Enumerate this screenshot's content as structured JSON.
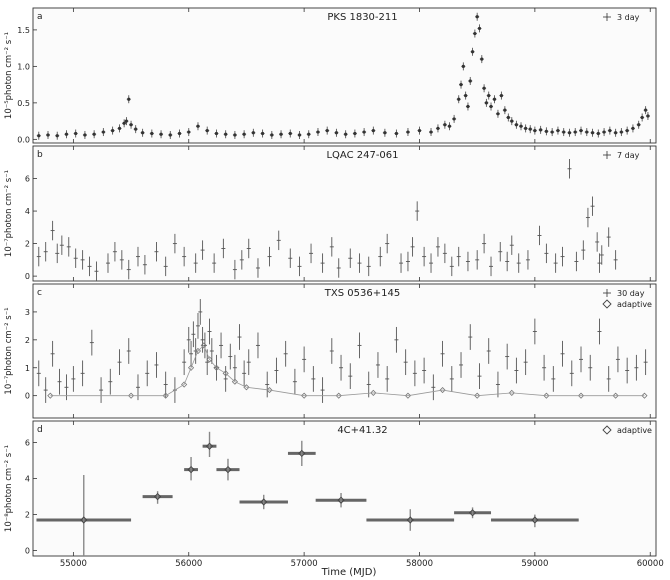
{
  "xlabel": "Time (MJD)",
  "xlim": [
    54650,
    60050
  ],
  "xticks": [
    55000,
    56000,
    57000,
    58000,
    59000,
    60000
  ],
  "chart_data": [
    {
      "type": "scatter",
      "panel_letter": "a",
      "title": "PKS 1830-211",
      "ylabel": "10⁻⁵photon cm⁻² s⁻¹",
      "ylim": [
        -0.05,
        1.8
      ],
      "yticks": [
        0.0,
        0.5,
        1.0,
        1.5
      ],
      "legend": [
        {
          "marker": "+",
          "label": "3 day"
        }
      ],
      "legend_position": "top-right",
      "series": [
        {
          "name": "3 day",
          "marker": "plus",
          "x": [
            54700,
            54780,
            54860,
            54940,
            55020,
            55100,
            55180,
            55260,
            55340,
            55400,
            55440,
            55460,
            55480,
            55500,
            55540,
            55600,
            55680,
            55760,
            55840,
            55920,
            56000,
            56080,
            56160,
            56240,
            56320,
            56400,
            56480,
            56560,
            56640,
            56720,
            56800,
            56880,
            56960,
            57040,
            57120,
            57200,
            57280,
            57360,
            57440,
            57520,
            57600,
            57700,
            57800,
            57900,
            58000,
            58100,
            58160,
            58220,
            58260,
            58300,
            58340,
            58360,
            58380,
            58400,
            58420,
            58440,
            58460,
            58480,
            58500,
            58520,
            58540,
            58560,
            58580,
            58600,
            58620,
            58650,
            58680,
            58710,
            58740,
            58770,
            58800,
            58840,
            58880,
            58920,
            58960,
            59000,
            59050,
            59100,
            59150,
            59200,
            59250,
            59300,
            59350,
            59400,
            59450,
            59500,
            59550,
            59600,
            59650,
            59700,
            59750,
            59800,
            59850,
            59900,
            59930,
            59960,
            59980
          ],
          "y": [
            0.05,
            0.06,
            0.05,
            0.07,
            0.08,
            0.06,
            0.07,
            0.1,
            0.12,
            0.15,
            0.22,
            0.25,
            0.55,
            0.2,
            0.14,
            0.09,
            0.08,
            0.07,
            0.06,
            0.08,
            0.1,
            0.18,
            0.12,
            0.08,
            0.07,
            0.06,
            0.07,
            0.09,
            0.08,
            0.06,
            0.07,
            0.08,
            0.06,
            0.07,
            0.1,
            0.12,
            0.09,
            0.07,
            0.08,
            0.1,
            0.12,
            0.09,
            0.08,
            0.1,
            0.12,
            0.1,
            0.15,
            0.2,
            0.18,
            0.28,
            0.55,
            0.75,
            1.0,
            0.6,
            0.45,
            0.8,
            1.2,
            1.45,
            1.68,
            1.52,
            1.1,
            0.7,
            0.5,
            0.6,
            0.45,
            0.55,
            0.35,
            0.6,
            0.4,
            0.3,
            0.25,
            0.2,
            0.18,
            0.15,
            0.14,
            0.12,
            0.13,
            0.11,
            0.1,
            0.12,
            0.1,
            0.09,
            0.1,
            0.12,
            0.1,
            0.09,
            0.08,
            0.1,
            0.12,
            0.09,
            0.1,
            0.12,
            0.15,
            0.2,
            0.3,
            0.4,
            0.32
          ]
        }
      ]
    },
    {
      "type": "scatter",
      "panel_letter": "b",
      "title": "LQAC 247-061",
      "ylabel": "10⁻⁷photon cm⁻² s⁻¹",
      "ylim": [
        -0.3,
        8.0
      ],
      "yticks": [
        0,
        2,
        4,
        6
      ],
      "legend": [
        {
          "marker": "+",
          "label": "7 day"
        }
      ],
      "legend_position": "top-right",
      "series": [
        {
          "name": "7 day",
          "marker": "plus",
          "x": [
            54700,
            54760,
            54820,
            54860,
            54900,
            54960,
            55020,
            55080,
            55140,
            55200,
            55300,
            55360,
            55420,
            55480,
            55560,
            55620,
            55720,
            55800,
            55880,
            55960,
            56060,
            56120,
            56220,
            56300,
            56400,
            56460,
            56520,
            56600,
            56700,
            56780,
            56880,
            56960,
            57060,
            57160,
            57240,
            57300,
            57400,
            57480,
            57560,
            57660,
            57720,
            57840,
            57900,
            57940,
            57980,
            58040,
            58100,
            58160,
            58220,
            58280,
            58340,
            58420,
            58500,
            58560,
            58620,
            58700,
            58760,
            58800,
            58860,
            58940,
            59040,
            59100,
            59180,
            59240,
            59300,
            59360,
            59420,
            59460,
            59500,
            59540,
            59560,
            59580,
            59640,
            59700
          ],
          "y": [
            1.2,
            1.5,
            2.8,
            1.4,
            1.9,
            1.8,
            1.1,
            1.0,
            0.6,
            0.3,
            0.8,
            1.5,
            1.0,
            0.4,
            1.2,
            0.7,
            1.5,
            0.6,
            2.0,
            1.2,
            0.8,
            1.6,
            0.8,
            1.7,
            0.4,
            1.0,
            1.7,
            0.5,
            1.2,
            2.2,
            1.1,
            0.6,
            1.4,
            0.8,
            1.8,
            0.5,
            1.1,
            0.8,
            0.6,
            1.2,
            2.0,
            0.8,
            0.9,
            1.8,
            4.0,
            1.2,
            0.8,
            1.8,
            1.4,
            0.6,
            1.2,
            0.9,
            1.0,
            2.0,
            0.6,
            1.5,
            0.9,
            1.9,
            0.8,
            1.0,
            2.5,
            1.4,
            0.8,
            1.2,
            6.6,
            0.9,
            1.6,
            3.6,
            4.3,
            2.1,
            0.8,
            1.3,
            2.4,
            1.0
          ]
        }
      ]
    },
    {
      "type": "scatter",
      "panel_letter": "c",
      "title": "TXS 0536+145",
      "ylabel": "10⁻⁷photon cm⁻² s⁻¹",
      "ylim": [
        -0.8,
        4.0
      ],
      "yticks": [
        0,
        1,
        2,
        3
      ],
      "legend": [
        {
          "marker": "+",
          "label": "30 day"
        },
        {
          "marker": "diamond",
          "label": "adaptive"
        }
      ],
      "legend_position": "top-right",
      "series": [
        {
          "name": "30 day",
          "marker": "plus",
          "x": [
            54700,
            54760,
            54820,
            54880,
            54940,
            55000,
            55080,
            55160,
            55240,
            55320,
            55400,
            55480,
            55560,
            55640,
            55720,
            55800,
            55880,
            55960,
            56000,
            56020,
            56040,
            56060,
            56080,
            56100,
            56120,
            56140,
            56160,
            56180,
            56200,
            56240,
            56280,
            56320,
            56360,
            56400,
            56440,
            56480,
            56520,
            56600,
            56680,
            56760,
            56840,
            56920,
            57000,
            57080,
            57160,
            57240,
            57320,
            57400,
            57480,
            57560,
            57640,
            57720,
            57800,
            57880,
            57960,
            58040,
            58120,
            58200,
            58280,
            58360,
            58440,
            58520,
            58600,
            58680,
            58760,
            58840,
            58920,
            59000,
            59080,
            59160,
            59240,
            59320,
            59400,
            59480,
            59560,
            59640,
            59720,
            59800,
            59880,
            59960
          ],
          "y": [
            0.8,
            0.2,
            1.5,
            0.5,
            0.3,
            0.6,
            0.8,
            1.9,
            0.2,
            0.5,
            1.2,
            1.6,
            0.3,
            0.8,
            1.1,
            0.4,
            0.2,
            1.2,
            2.0,
            1.5,
            2.2,
            1.6,
            2.5,
            3.0,
            2.0,
            1.8,
            1.2,
            2.3,
            1.6,
            1.0,
            1.8,
            0.6,
            1.4,
            1.0,
            2.1,
            0.8,
            1.2,
            1.8,
            0.4,
            0.9,
            1.5,
            0.5,
            1.3,
            0.6,
            0.2,
            1.6,
            1.0,
            0.7,
            1.8,
            0.4,
            1.1,
            0.6,
            2.0,
            1.2,
            0.8,
            0.9,
            0.3,
            1.5,
            0.6,
            1.1,
            2.1,
            0.7,
            1.6,
            0.4,
            1.4,
            0.9,
            1.2,
            2.3,
            1.0,
            0.6,
            1.5,
            0.8,
            1.3,
            1.0,
            2.3,
            0.6,
            1.3,
            0.9,
            1.0,
            1.2
          ]
        },
        {
          "name": "adaptive",
          "marker": "diamond",
          "x": [
            54800,
            55500,
            55800,
            55960,
            56020,
            56080,
            56130,
            56180,
            56240,
            56320,
            56400,
            56500,
            56700,
            57000,
            57300,
            57600,
            57900,
            58200,
            58500,
            58800,
            59100,
            59400,
            59700,
            59950
          ],
          "y": [
            0.0,
            0.0,
            0.0,
            0.4,
            1.0,
            1.6,
            1.8,
            1.3,
            1.0,
            0.8,
            0.5,
            0.3,
            0.2,
            0.0,
            0.0,
            0.1,
            0.0,
            0.2,
            0.0,
            0.1,
            0.0,
            0.0,
            0.0,
            0.0
          ]
        }
      ]
    },
    {
      "type": "scatter",
      "panel_letter": "d",
      "title": "4C+41.32",
      "ylabel": "10⁻⁸photon cm⁻² s⁻¹",
      "ylim": [
        -0.3,
        7.2
      ],
      "yticks": [
        0,
        2,
        4,
        6
      ],
      "legend": [
        {
          "marker": "diamond",
          "label": "adaptive"
        }
      ],
      "legend_position": "top-right",
      "series": [
        {
          "name": "adaptive",
          "marker": "diamond",
          "x": [
            55090,
            55730,
            56020,
            56180,
            56340,
            56650,
            56980,
            57320,
            57920,
            58460,
            59000
          ],
          "y": [
            1.7,
            3.0,
            4.5,
            5.8,
            4.5,
            2.7,
            5.4,
            2.8,
            1.7,
            2.1,
            1.7
          ],
          "x_err": [
            [
              55000,
              55000
            ],
            [
              55600,
              55860
            ],
            [
              55960,
              56080
            ],
            [
              56120,
              56240
            ],
            [
              56240,
              56440
            ],
            [
              56440,
              56860
            ],
            [
              56860,
              57100
            ],
            [
              57100,
              57540
            ],
            [
              57540,
              58300
            ],
            [
              58300,
              58620
            ],
            [
              58620,
              59380
            ]
          ],
          "y_err": [
            [
              -0.3,
              4.2
            ],
            [
              2.6,
              3.3
            ],
            [
              3.9,
              5.2
            ],
            [
              5.2,
              6.6
            ],
            [
              3.9,
              5.1
            ],
            [
              2.3,
              3.1
            ],
            [
              4.7,
              6.1
            ],
            [
              2.4,
              3.2
            ],
            [
              1.1,
              2.3
            ],
            [
              1.8,
              2.4
            ],
            [
              1.3,
              2.0
            ]
          ]
        }
      ]
    }
  ]
}
